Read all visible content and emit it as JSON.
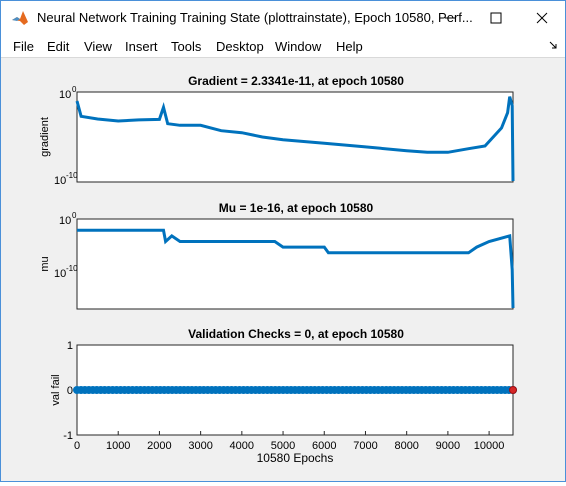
{
  "window": {
    "title": "Neural Network Training Training State (plottrainstate), Epoch 10580, Perf...",
    "icon": "matlab-logo-icon",
    "controls": [
      "minimize-icon",
      "maximize-icon",
      "close-icon"
    ]
  },
  "menu": [
    "File",
    "Edit",
    "View",
    "Insert",
    "Tools",
    "Desktop",
    "Window",
    "Help"
  ],
  "menu_dock_icon": "dock-arrow-icon",
  "colors": {
    "series": "#0072bd",
    "marker": "#d62728",
    "axes_bg": "#ffffff",
    "figure_bg": "#f0f0f0"
  },
  "xlabel": "10580 Epochs",
  "chart_data": [
    {
      "type": "line",
      "title": "Gradient = 2.3341e-11, at epoch 10580",
      "ylabel": "gradient",
      "yscale": "log",
      "ylim": [
        1e-10,
        1
      ],
      "ytick_labels": [
        {
          "base": "10",
          "exp": "0"
        },
        {
          "base": "10",
          "exp": "-10"
        }
      ],
      "xlim": [
        0,
        10580
      ],
      "x": [
        0,
        100,
        500,
        1000,
        1500,
        2000,
        2100,
        2200,
        2500,
        3000,
        3500,
        4000,
        4500,
        5000,
        6000,
        7000,
        8000,
        8500,
        9000,
        9500,
        9900,
        10300,
        10450,
        10500,
        10560,
        10580
      ],
      "values": [
        0.1,
        0.002,
        0.001,
        0.0006,
        0.0008,
        0.0009,
        0.02,
        0.0003,
        0.0002,
        0.0002,
        5e-05,
        3e-05,
        1e-05,
        5e-06,
        2e-06,
        8e-07,
        3e-07,
        2e-07,
        2e-07,
        5e-07,
        1e-06,
        0.0001,
        0.005,
        0.3,
        0.03,
        2.3341e-11
      ],
      "grid": false
    },
    {
      "type": "line",
      "title": "Mu = 1e-16, at epoch 10580",
      "ylabel": "mu",
      "yscale": "log",
      "ylim": [
        1e-16,
        1
      ],
      "ytick_labels": [
        {
          "base": "10",
          "exp": "0"
        },
        {
          "base": "10",
          "exp": "-10"
        }
      ],
      "xlim": [
        0,
        10580
      ],
      "x": [
        0,
        2100,
        2150,
        2300,
        2500,
        3500,
        4800,
        5000,
        5100,
        6000,
        6100,
        7500,
        8000,
        9500,
        9700,
        10000,
        10500,
        10560,
        10580
      ],
      "values": [
        0.01,
        0.01,
        0.0001,
        0.001,
        0.0001,
        0.0001,
        0.0001,
        1e-05,
        1e-05,
        1e-05,
        1e-06,
        1e-06,
        1e-06,
        1e-06,
        1e-05,
        0.0001,
        0.001,
        1e-09,
        1e-16
      ],
      "grid": false
    },
    {
      "type": "scatter",
      "title": "Validation Checks = 0, at epoch 10580",
      "ylabel": "val fail",
      "ylim": [
        -1,
        1
      ],
      "yticks": [
        -1,
        0,
        1
      ],
      "xlim": [
        0,
        10580
      ],
      "xticks": [
        0,
        1000,
        2000,
        3000,
        4000,
        5000,
        6000,
        7000,
        8000,
        9000,
        10000
      ],
      "points_x_range": [
        0,
        10580
      ],
      "value": 0,
      "final_point": {
        "x": 10580,
        "y": 0
      },
      "grid": false
    }
  ]
}
